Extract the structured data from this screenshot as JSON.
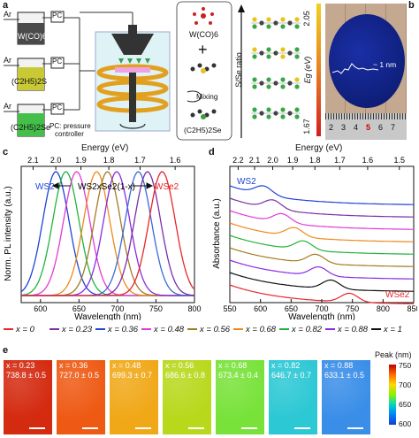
{
  "panels": {
    "a": {
      "label": "a",
      "gas": "Ar",
      "valve": "PC",
      "precursors": [
        "W(CO)6",
        "(C2H5)2S",
        "(C2H5)2Se"
      ],
      "pc_note_1": "PC: pressure",
      "pc_note_2": "controller",
      "mixing": "Mixing",
      "chem_top": "W(CO)6",
      "chem_bottom": "(C2H5)2Se",
      "chem_plus": "+",
      "ratio_label": "S/Se ratio",
      "eg_top": "2.05",
      "eg_bottom": "1.67",
      "eg_label": "Eg (eV)"
    },
    "b": {
      "label": "b",
      "thickness": "~ 1 nm",
      "ruler": [
        "2",
        "3",
        "4",
        "5",
        "6",
        "7"
      ]
    },
    "c": {
      "label": "c",
      "energy_label": "Energy (eV)",
      "energy_ticks": [
        "2.1",
        "2.0",
        "1.9",
        "1.8",
        "1.7",
        "1.6"
      ],
      "ylabel": "Norm. PL intensity (a.u.)",
      "xlabel": "Wavelength (nm)",
      "x_ticks": [
        "600",
        "650",
        "700",
        "750",
        "800"
      ],
      "left_material": "WS2",
      "mid_material": "WS2xSe2(1-x)",
      "right_material": "WSe2"
    },
    "d": {
      "label": "d",
      "energy_label": "Energy (eV)",
      "energy_ticks": [
        "2.2",
        "2.1",
        "2.0",
        "1.9",
        "1.8",
        "1.7",
        "1.6",
        "1.5"
      ],
      "ylabel": "Absorbance (a.u.)",
      "xlabel": "Wavelength (nm)",
      "x_ticks": [
        "550",
        "600",
        "650",
        "700",
        "750",
        "800",
        "850"
      ],
      "top_material": "WS2",
      "bottom_material": "WSe2"
    },
    "e": {
      "label": "e",
      "cbar_title": "Peak (nm)",
      "cbar_ticks": [
        "750",
        "700",
        "650",
        "600"
      ],
      "tiles": [
        {
          "x": "x = 0.23",
          "peak": "738.8 ± 0.5",
          "color": "#d42a10"
        },
        {
          "x": "x = 0.36",
          "peak": "727.0 ± 0.5",
          "color": "#ee5a14"
        },
        {
          "x": "x = 0.48",
          "peak": "699.3 ± 0.7",
          "color": "#f0a818"
        },
        {
          "x": "x = 0.56",
          "peak": "686.6 ± 0.8",
          "color": "#b8d81c"
        },
        {
          "x": "x = 0.68",
          "peak": "673.4 ± 0.4",
          "color": "#78e23a"
        },
        {
          "x": "x = 0.82",
          "peak": "646.7 ± 0.7",
          "color": "#2cc8d4"
        },
        {
          "x": "x = 0.88",
          "peak": "633.1 ± 0.5",
          "color": "#3a8ee8"
        }
      ]
    }
  },
  "legend": [
    {
      "label": "x = 0",
      "color": "#e8262a"
    },
    {
      "label": "x = 0.23",
      "color": "#7a2fa8"
    },
    {
      "label": "x = 0.36",
      "color": "#1f44d8"
    },
    {
      "label": "x = 0.48",
      "color": "#e23ad6"
    },
    {
      "label": "x = 0.56",
      "color": "#a57a22"
    },
    {
      "label": "x = 0.68",
      "color": "#ee8a1a"
    },
    {
      "label": "x = 0.82",
      "color": "#22b43a"
    },
    {
      "label": "x = 0.88",
      "color": "#8a2be2"
    },
    {
      "label": "x = 1",
      "color": "#111111"
    }
  ],
  "chart_data": [
    {
      "type": "line",
      "panel": "c",
      "xlabel": "Wavelength (nm)",
      "ylabel": "Norm. PL intensity (a.u.)",
      "xlim": [
        575,
        800
      ],
      "series": [
        {
          "name": "x = 1",
          "color": "#1f44d8",
          "peak": 620,
          "fwhm": 40
        },
        {
          "name": "x = 0.88",
          "color": "#22b43a",
          "peak": 633,
          "fwhm": 40
        },
        {
          "name": "x = 0.82",
          "color": "#e23ad6",
          "peak": 647,
          "fwhm": 40
        },
        {
          "name": "x = 0.68",
          "color": "#ee8a1a",
          "peak": 673,
          "fwhm": 40
        },
        {
          "name": "x = 0.56",
          "color": "#a57a22",
          "peak": 687,
          "fwhm": 40
        },
        {
          "name": "x = 0.48",
          "color": "#8a2be2",
          "peak": 699,
          "fwhm": 40
        },
        {
          "name": "x = 0.36",
          "color": "#3b6ad8",
          "peak": 727,
          "fwhm": 40
        },
        {
          "name": "x = 0.23",
          "color": "#7a2fa8",
          "peak": 739,
          "fwhm": 40
        },
        {
          "name": "x = 0",
          "color": "#e8262a",
          "peak": 758,
          "fwhm": 40
        }
      ]
    },
    {
      "type": "line",
      "panel": "d",
      "xlabel": "Wavelength (nm)",
      "ylabel": "Absorbance (a.u.)",
      "xlim": [
        550,
        850
      ],
      "series": [
        {
          "name": "x = 1",
          "color": "#1f44d8",
          "peak": 605
        },
        {
          "name": "x = 0.88",
          "color": "#7a2fa8",
          "peak": 620
        },
        {
          "name": "x = 0.82",
          "color": "#e23ad6",
          "peak": 635
        },
        {
          "name": "x = 0.68",
          "color": "#ee8a1a",
          "peak": 655
        },
        {
          "name": "x = 0.56",
          "color": "#22b43a",
          "peak": 670
        },
        {
          "name": "x = 0.48",
          "color": "#a57a22",
          "peak": 690
        },
        {
          "name": "x = 0.36",
          "color": "#8a2be2",
          "peak": 695
        },
        {
          "name": "x = 0.23",
          "color": "#111111",
          "peak": 715
        },
        {
          "name": "x = 0",
          "color": "#e8262a",
          "peak": 745
        }
      ]
    }
  ]
}
